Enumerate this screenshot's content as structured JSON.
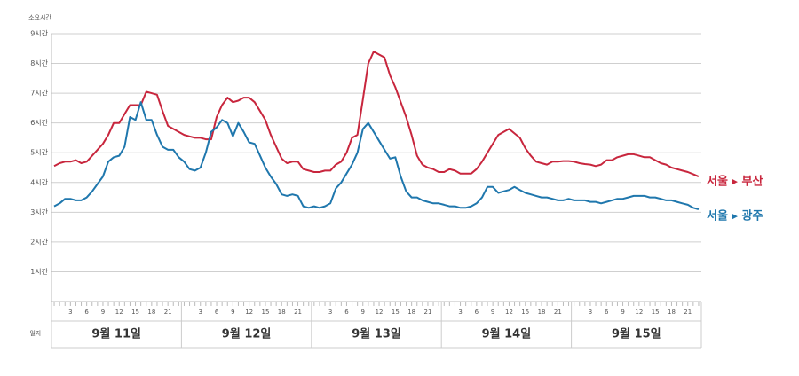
{
  "chart_data": {
    "type": "line",
    "y_axis_label": "소요시간",
    "x_axis_label": "일자",
    "days": [
      "9월 11일",
      "9월 12일",
      "9월 13일",
      "9월 14일",
      "9월 15일"
    ],
    "categories": [
      null,
      null,
      null,
      "3",
      null,
      null,
      "6",
      null,
      null,
      "9",
      null,
      null,
      "12",
      null,
      null,
      "15",
      null,
      null,
      "18",
      null,
      null,
      "21",
      null,
      null,
      null,
      null,
      null,
      "3",
      null,
      null,
      "6",
      null,
      null,
      "9",
      null,
      null,
      "12",
      null,
      null,
      "15",
      null,
      null,
      "18",
      null,
      null,
      "21",
      null,
      null,
      null,
      null,
      null,
      "3",
      null,
      null,
      "6",
      null,
      null,
      "9",
      null,
      null,
      "12",
      null,
      null,
      "15",
      null,
      null,
      "18",
      null,
      null,
      "21",
      null,
      null,
      null,
      null,
      null,
      "3",
      null,
      null,
      "6",
      null,
      null,
      "9",
      null,
      null,
      "12",
      null,
      null,
      "15",
      null,
      null,
      "18",
      null,
      null,
      "21",
      null,
      null,
      null,
      null,
      null,
      "3",
      null,
      null,
      "6",
      null,
      null,
      "9",
      null,
      null,
      "12",
      null,
      null,
      "15",
      null,
      null,
      "18",
      null,
      null,
      "21",
      null,
      null
    ],
    "ylim": [
      0,
      9
    ],
    "yticks": [
      {
        "value": 1,
        "label": "1시간"
      },
      {
        "value": 2,
        "label": "2시간"
      },
      {
        "value": 3,
        "label": "3시간"
      },
      {
        "value": 4,
        "label": "4시간"
      },
      {
        "value": 5,
        "label": "5시간"
      },
      {
        "value": 6,
        "label": "6시간"
      },
      {
        "value": 7,
        "label": "7시간"
      },
      {
        "value": 8,
        "label": "8시간"
      },
      {
        "value": 9,
        "label": "9시간"
      }
    ],
    "grid": true,
    "series": [
      {
        "name": "서울 ▸ 부산",
        "color": "#c8263d",
        "values": [
          4.55,
          4.65,
          4.7,
          4.7,
          4.75,
          4.65,
          4.7,
          4.9,
          5.1,
          5.3,
          5.6,
          6.0,
          6.0,
          6.3,
          6.6,
          6.6,
          6.6,
          7.05,
          7.0,
          6.95,
          6.4,
          5.9,
          5.8,
          5.7,
          5.6,
          5.55,
          5.5,
          5.5,
          5.45,
          5.45,
          6.2,
          6.6,
          6.85,
          6.7,
          6.75,
          6.85,
          6.85,
          6.7,
          6.4,
          6.1,
          5.6,
          5.2,
          4.8,
          4.65,
          4.7,
          4.7,
          4.45,
          4.4,
          4.35,
          4.35,
          4.4,
          4.4,
          4.6,
          4.7,
          5.0,
          5.5,
          5.6,
          6.8,
          8.0,
          8.4,
          8.3,
          8.2,
          7.6,
          7.2,
          6.7,
          6.2,
          5.6,
          4.9,
          4.6,
          4.5,
          4.45,
          4.35,
          4.35,
          4.45,
          4.4,
          4.3,
          4.3,
          4.3,
          4.45,
          4.7,
          5.0,
          5.3,
          5.6,
          5.7,
          5.8,
          5.65,
          5.5,
          5.15,
          4.9,
          4.7,
          4.65,
          4.6,
          4.7,
          4.7,
          4.72,
          4.72,
          4.7,
          4.65,
          4.62,
          4.6,
          4.55,
          4.6,
          4.75,
          4.75,
          4.85,
          4.9,
          4.95,
          4.95,
          4.9,
          4.85,
          4.85,
          4.75,
          4.65,
          4.6,
          4.5,
          4.45,
          4.4,
          4.35,
          4.28,
          4.2
        ]
      },
      {
        "name": "서울 ▸ 광주",
        "color": "#1f77ad",
        "values": [
          3.2,
          3.3,
          3.45,
          3.45,
          3.4,
          3.4,
          3.5,
          3.7,
          3.95,
          4.2,
          4.7,
          4.85,
          4.9,
          5.2,
          6.2,
          6.1,
          6.7,
          6.1,
          6.1,
          5.6,
          5.2,
          5.1,
          5.1,
          4.85,
          4.7,
          4.45,
          4.4,
          4.5,
          5.0,
          5.7,
          5.85,
          6.1,
          6.0,
          5.55,
          6.0,
          5.7,
          5.35,
          5.3,
          4.9,
          4.5,
          4.2,
          3.95,
          3.6,
          3.55,
          3.6,
          3.55,
          3.2,
          3.15,
          3.2,
          3.15,
          3.2,
          3.3,
          3.8,
          4.0,
          4.3,
          4.6,
          5.0,
          5.8,
          6.0,
          5.7,
          5.4,
          5.1,
          4.8,
          4.85,
          4.2,
          3.7,
          3.5,
          3.5,
          3.4,
          3.35,
          3.3,
          3.3,
          3.25,
          3.2,
          3.2,
          3.15,
          3.15,
          3.2,
          3.3,
          3.5,
          3.85,
          3.85,
          3.65,
          3.7,
          3.75,
          3.85,
          3.75,
          3.65,
          3.6,
          3.55,
          3.5,
          3.5,
          3.45,
          3.4,
          3.4,
          3.45,
          3.4,
          3.4,
          3.4,
          3.35,
          3.35,
          3.3,
          3.35,
          3.4,
          3.45,
          3.45,
          3.5,
          3.55,
          3.55,
          3.55,
          3.5,
          3.5,
          3.45,
          3.4,
          3.4,
          3.35,
          3.3,
          3.25,
          3.15,
          3.1
        ]
      }
    ]
  }
}
